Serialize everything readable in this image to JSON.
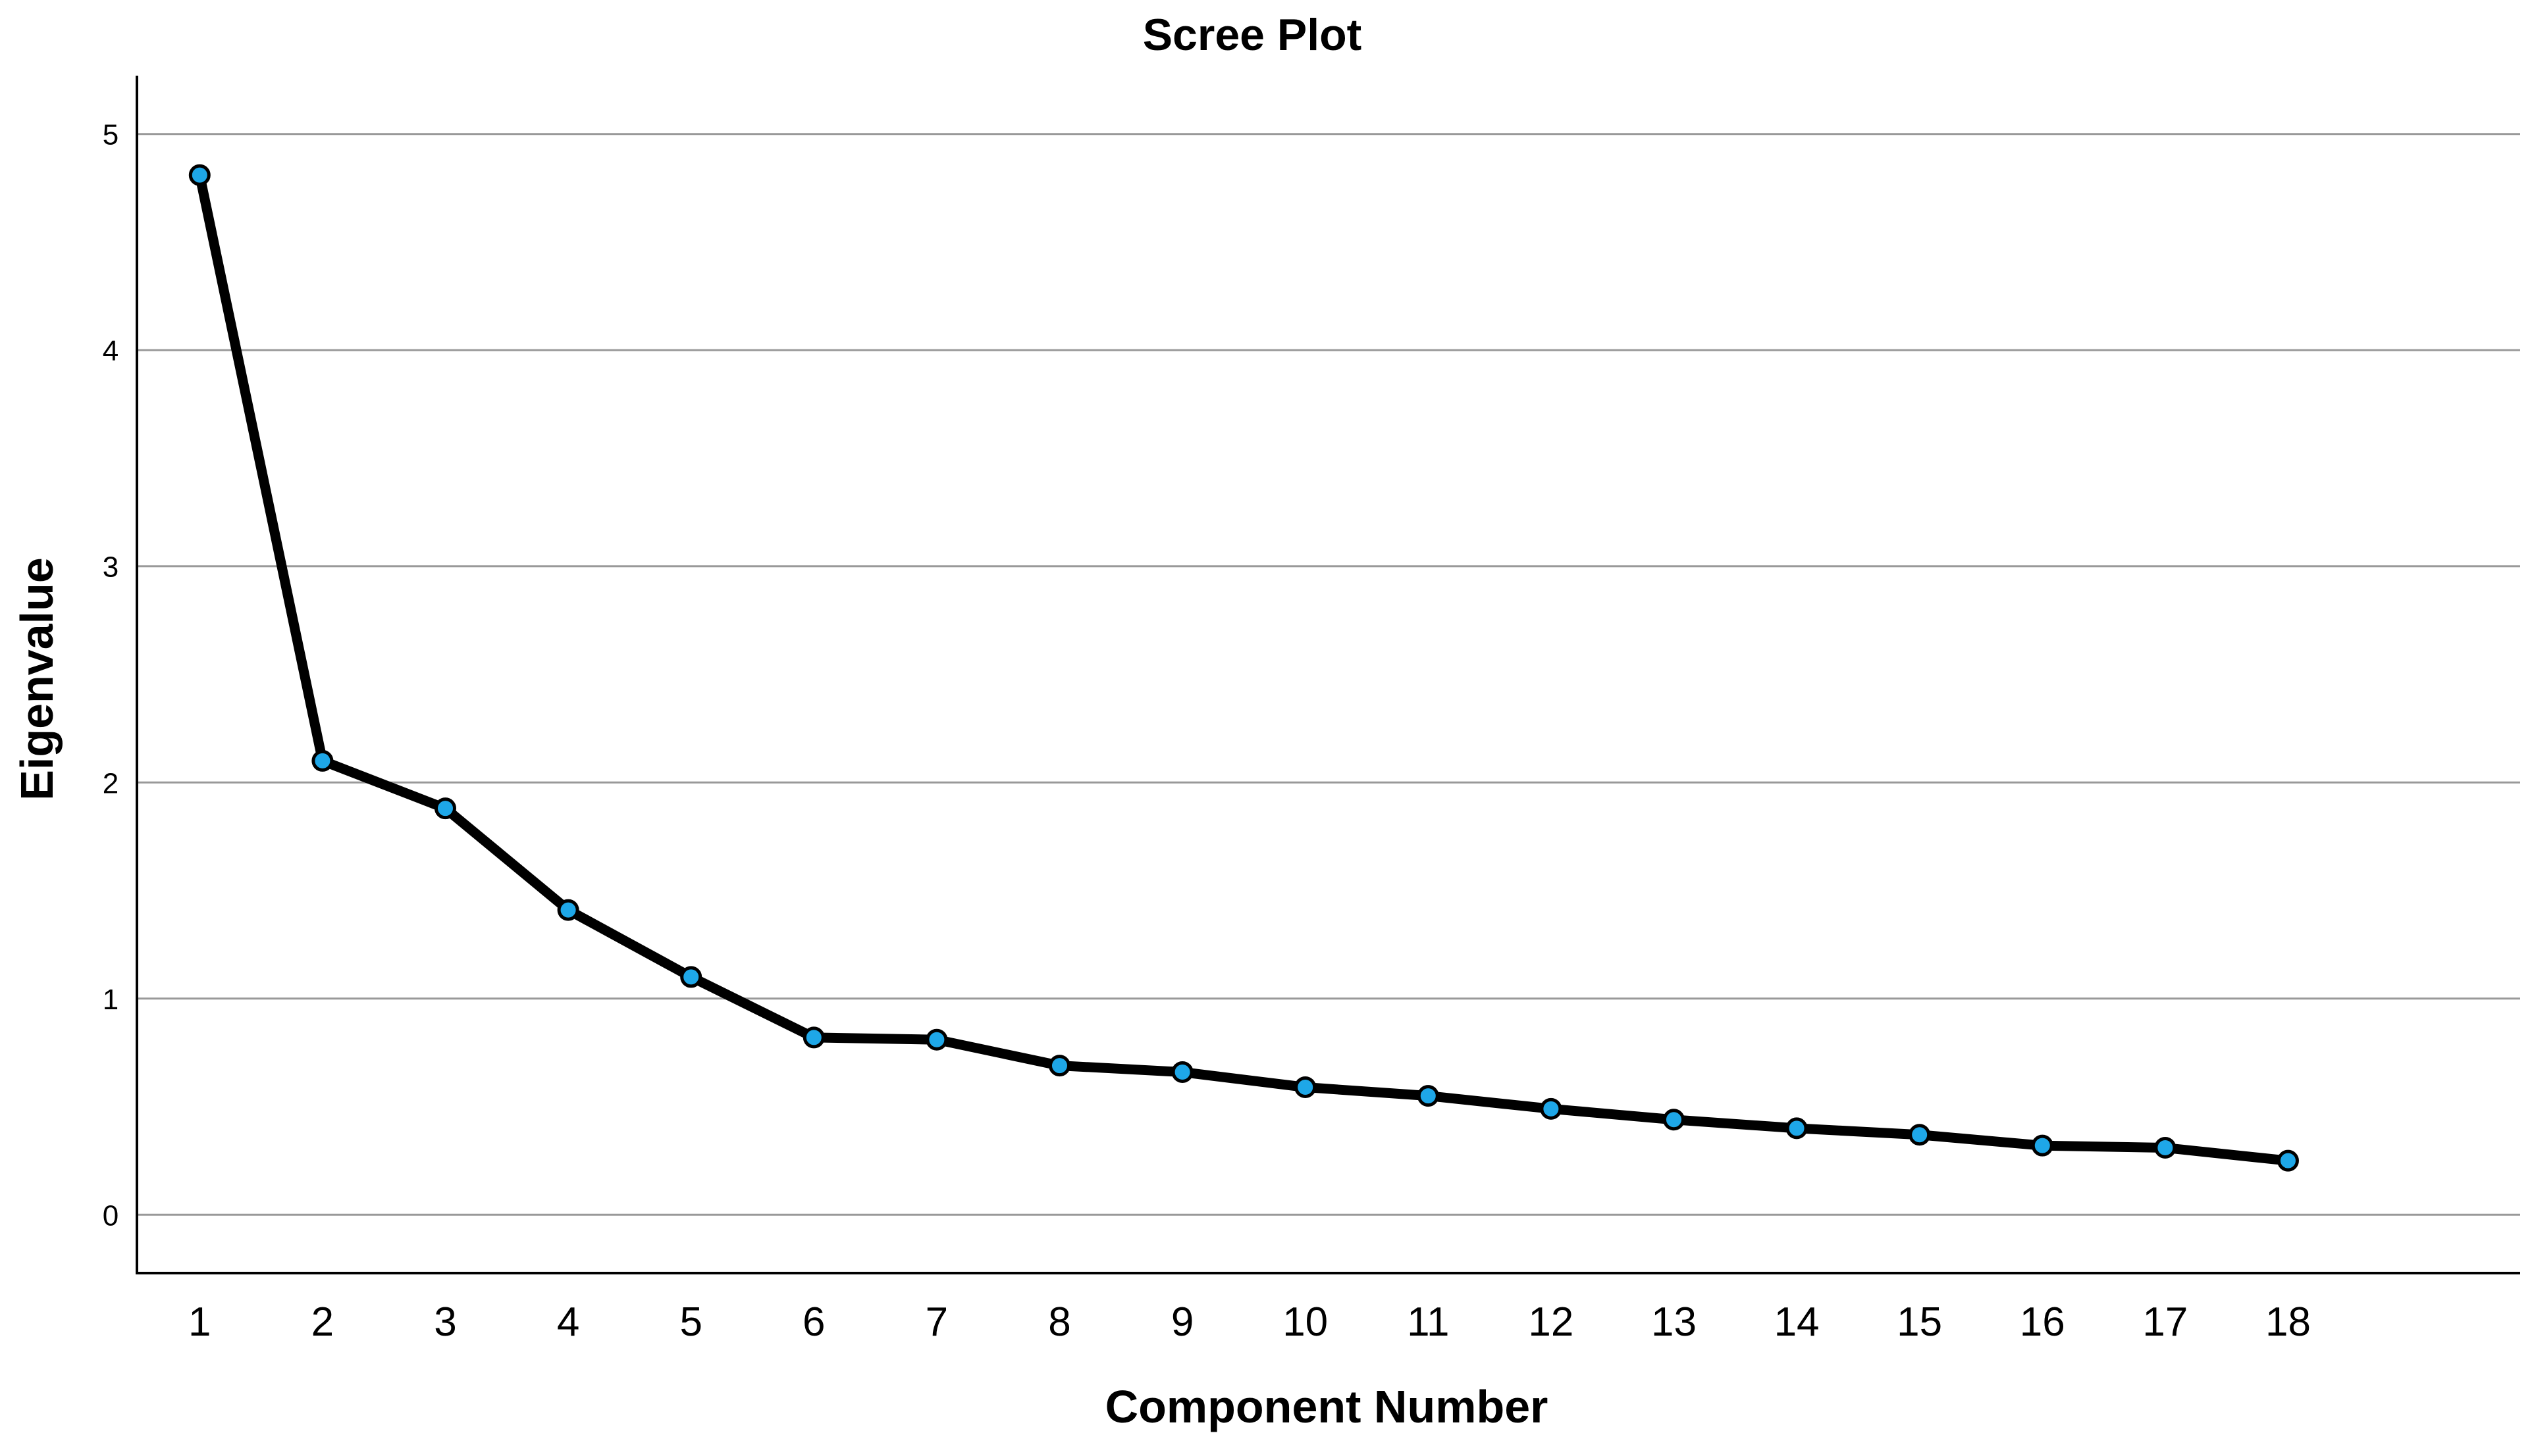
{
  "chart_data": {
    "type": "line",
    "title": "Scree Plot",
    "xlabel": "Component Number",
    "ylabel": "Eigenvalue",
    "x": [
      1,
      2,
      3,
      4,
      5,
      6,
      7,
      8,
      9,
      10,
      11,
      12,
      13,
      14,
      15,
      16,
      17,
      18
    ],
    "x_tick_labels": [
      "1",
      "2",
      "3",
      "4",
      "5",
      "6",
      "7",
      "8",
      "9",
      "10",
      "11",
      "12",
      "13",
      "14",
      "15",
      "16",
      "17",
      "18"
    ],
    "series": [
      {
        "values": [
          4.81,
          2.1,
          1.88,
          1.41,
          1.1,
          0.82,
          0.81,
          0.69,
          0.66,
          0.59,
          0.55,
          0.49,
          0.44,
          0.4,
          0.37,
          0.32,
          0.31,
          0.25
        ]
      }
    ],
    "ylim": [
      -0.27,
      5.27
    ],
    "y_ticks": [
      0,
      1,
      2,
      3,
      4,
      5
    ],
    "y_tick_labels": [
      "0",
      "1",
      "2",
      "3",
      "4",
      "5"
    ],
    "grid": "horizontal",
    "colors": {
      "line": "#000000",
      "marker_fill": "#1ea7e8",
      "marker_edge": "#000000",
      "gridline": "#999999",
      "axis": "#000000"
    }
  }
}
